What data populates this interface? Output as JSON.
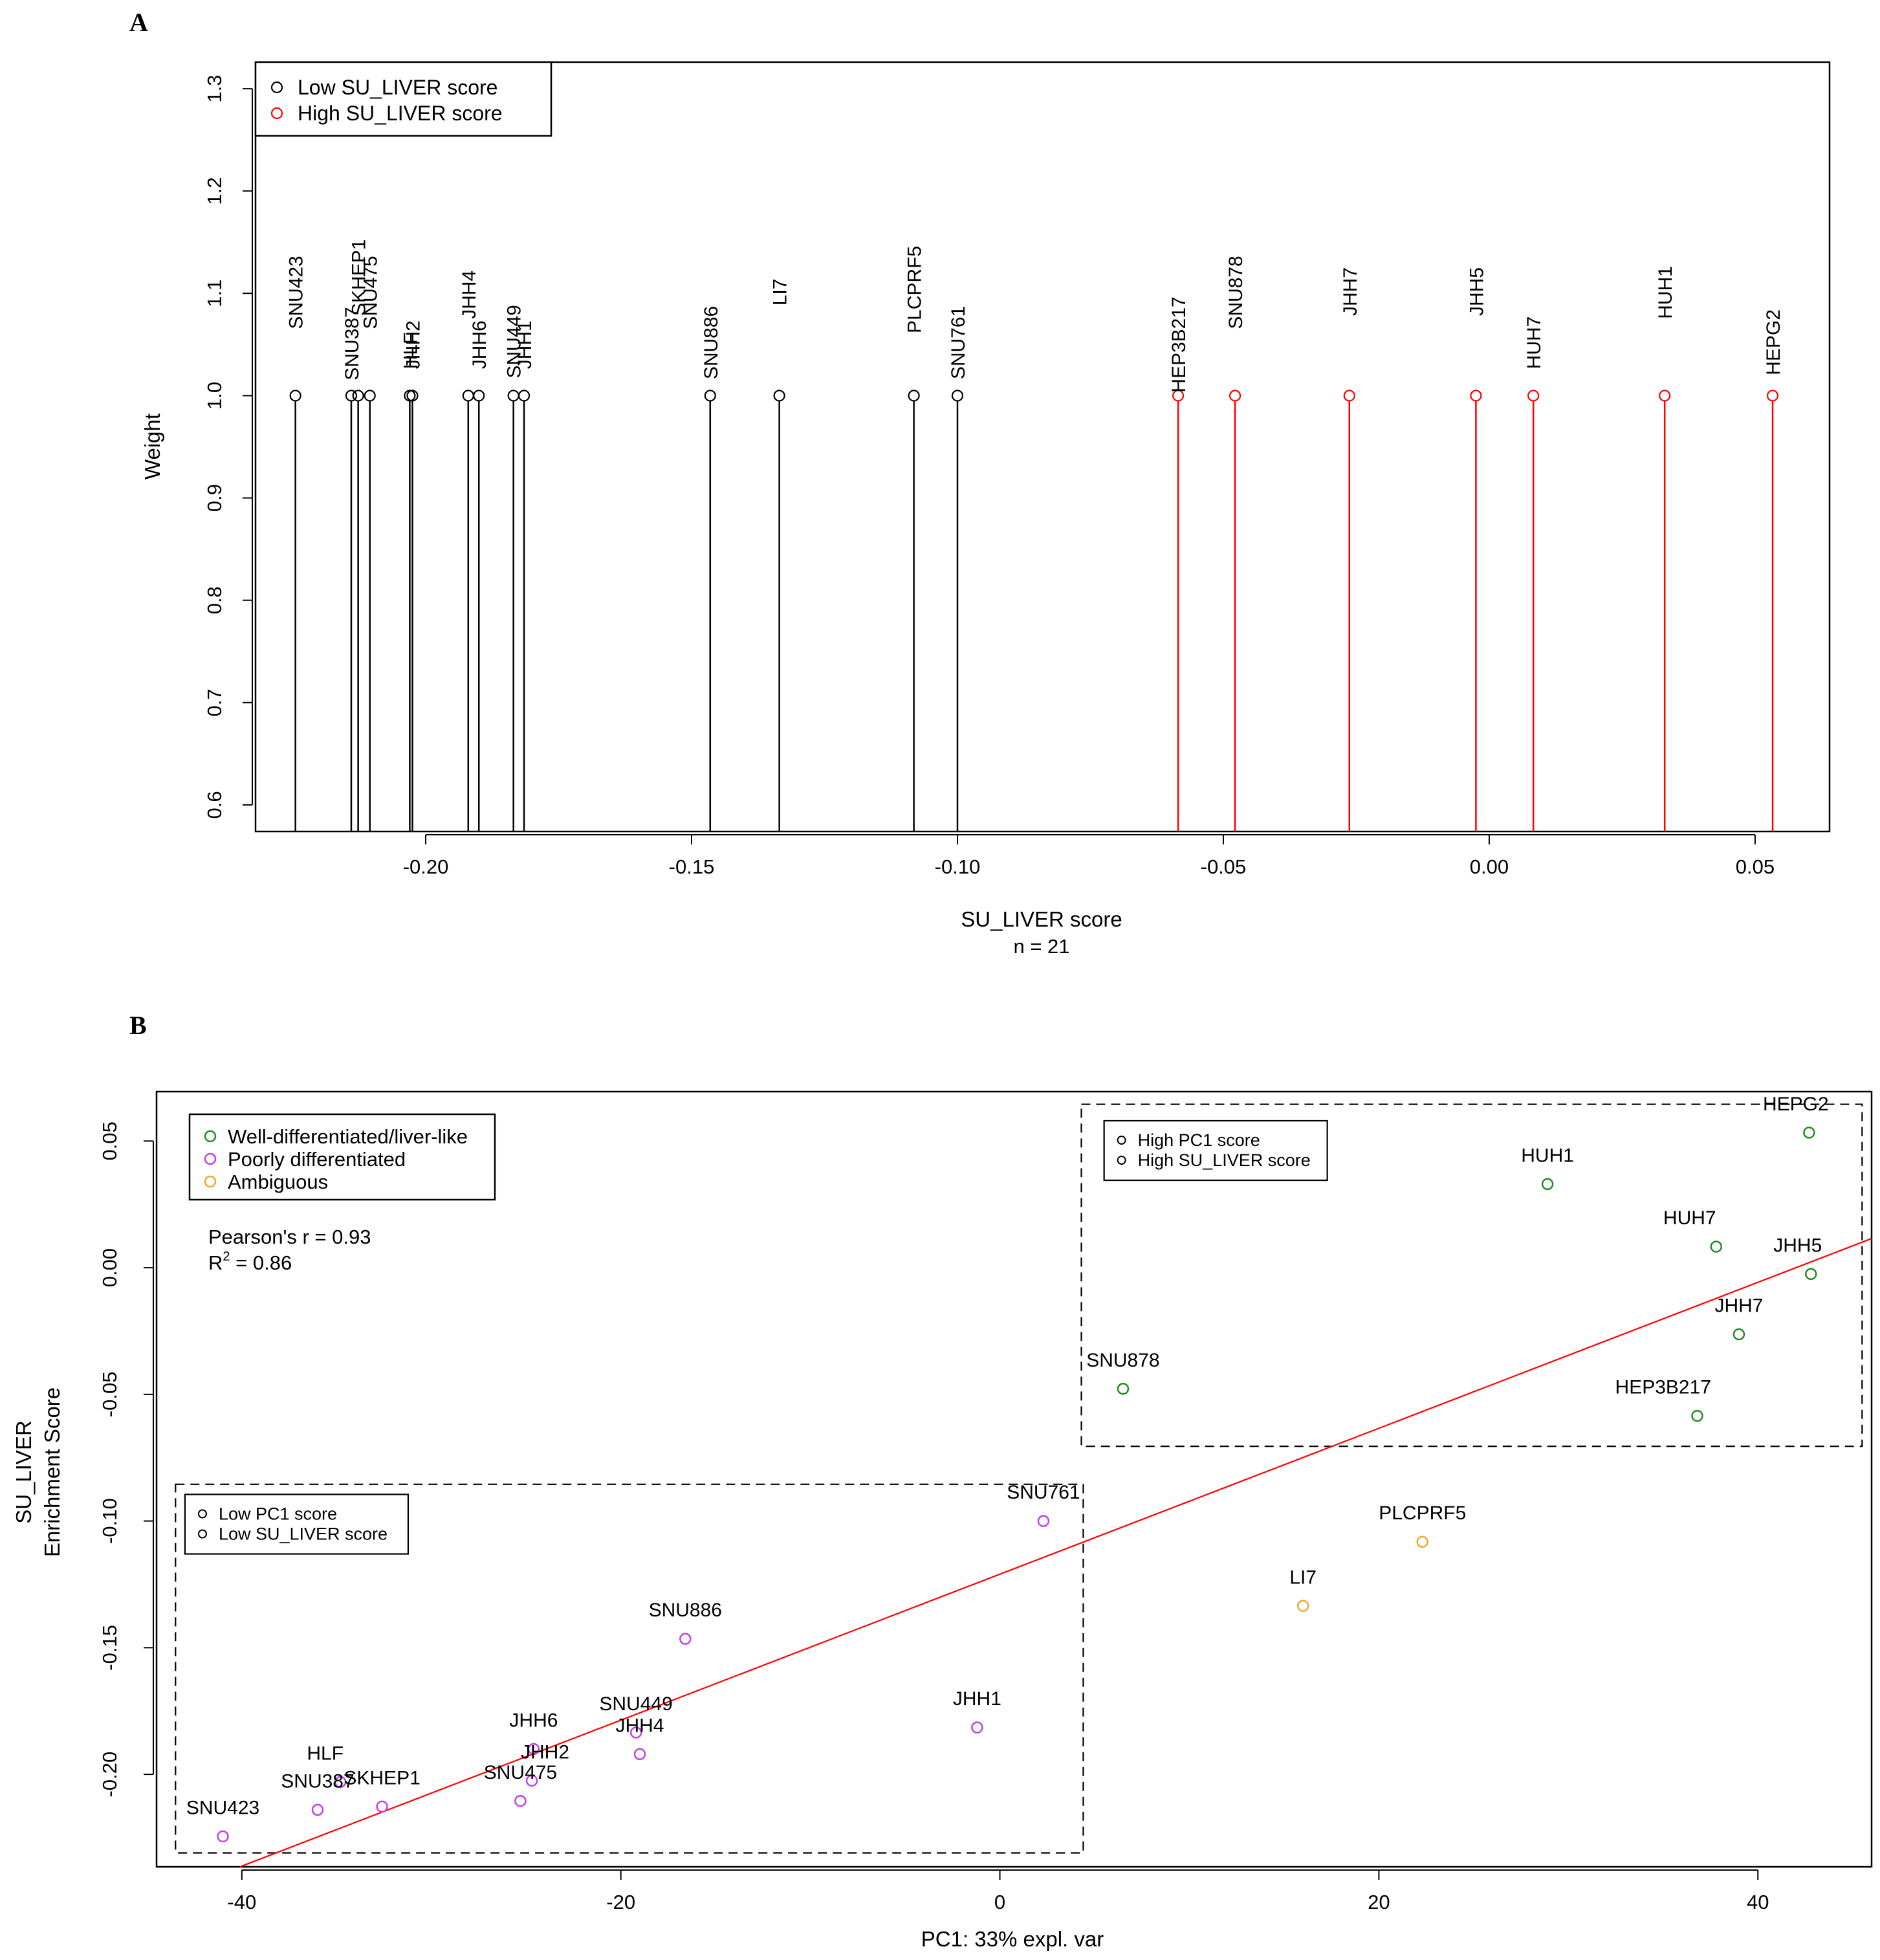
{
  "panel_a": {
    "label": "A",
    "chart_data": {
      "type": "lollipop",
      "xlabel": "SU_LIVER score",
      "xlabel_sub": "n = 21",
      "ylabel": "Weight",
      "xlim": [
        -0.232,
        0.064
      ],
      "ylim": [
        0.574,
        1.326
      ],
      "xticks": [
        -0.2,
        -0.15,
        -0.1,
        -0.05,
        0.0,
        0.05
      ],
      "xtick_labels": [
        "-0.20",
        "-0.15",
        "-0.10",
        "-0.05",
        "0.00",
        "0.05"
      ],
      "yticks": [
        0.6,
        0.7,
        0.8,
        0.9,
        1.0,
        1.1,
        1.2,
        1.3
      ],
      "ytick_labels": [
        "0.6",
        "0.7",
        "0.8",
        "0.9",
        "1.0",
        "1.1",
        "1.2",
        "1.3"
      ],
      "legend": {
        "position": "top-left",
        "entries": [
          {
            "label": "Low SU_LIVER score",
            "color": "#000000"
          },
          {
            "label": "High SU_LIVER score",
            "color": "#ff0000"
          }
        ]
      },
      "points": [
        {
          "name": "SNU423",
          "x": -0.2245,
          "weight": 1.0,
          "group": "low",
          "label_y": 1.065
        },
        {
          "name": "SNU387",
          "x": -0.214,
          "weight": 1.0,
          "group": "low",
          "label_y": 1.015
        },
        {
          "name": "SKHEP1",
          "x": -0.2127,
          "weight": 1.0,
          "group": "low",
          "label_y": 1.078
        },
        {
          "name": "SNU475",
          "x": -0.2105,
          "weight": 1.0,
          "group": "low",
          "label_y": 1.065
        },
        {
          "name": "HLF",
          "x": -0.203,
          "weight": 1.0,
          "group": "low",
          "label_y": 1.026
        },
        {
          "name": "JHH2",
          "x": -0.2025,
          "weight": 1.0,
          "group": "low",
          "label_y": 1.026
        },
        {
          "name": "JHH4",
          "x": -0.192,
          "weight": 1.0,
          "group": "low",
          "label_y": 1.075
        },
        {
          "name": "JHH6",
          "x": -0.19,
          "weight": 1.0,
          "group": "low",
          "label_y": 1.026
        },
        {
          "name": "SNU449",
          "x": -0.1835,
          "weight": 1.0,
          "group": "low",
          "label_y": 1.017
        },
        {
          "name": "JHH1",
          "x": -0.1815,
          "weight": 1.0,
          "group": "low",
          "label_y": 1.026
        },
        {
          "name": "SNU886",
          "x": -0.1465,
          "weight": 1.0,
          "group": "low",
          "label_y": 1.016
        },
        {
          "name": "LI7",
          "x": -0.1335,
          "weight": 1.0,
          "group": "low",
          "label_y": 1.088
        },
        {
          "name": "PLCPRF5",
          "x": -0.1082,
          "weight": 1.0,
          "group": "low",
          "label_y": 1.061
        },
        {
          "name": "SNU761",
          "x": -0.1,
          "weight": 1.0,
          "group": "low",
          "label_y": 1.016
        },
        {
          "name": "HEP3B217",
          "x": -0.0585,
          "weight": 1.0,
          "group": "high",
          "label_y": 1.003
        },
        {
          "name": "SNU878",
          "x": -0.0478,
          "weight": 1.0,
          "group": "high",
          "label_y": 1.065
        },
        {
          "name": "JHH7",
          "x": -0.0263,
          "weight": 1.0,
          "group": "high",
          "label_y": 1.078
        },
        {
          "name": "JHH5",
          "x": -0.0025,
          "weight": 1.0,
          "group": "high",
          "label_y": 1.078
        },
        {
          "name": "HUH7",
          "x": 0.0083,
          "weight": 1.0,
          "group": "high",
          "label_y": 1.026
        },
        {
          "name": "HUH1",
          "x": 0.033,
          "weight": 1.0,
          "group": "high",
          "label_y": 1.075
        },
        {
          "name": "HEPG2",
          "x": 0.0533,
          "weight": 1.0,
          "group": "high",
          "label_y": 1.02
        }
      ]
    }
  },
  "panel_b": {
    "label": "B",
    "chart_data": {
      "type": "scatter",
      "xlabel": "PC1: 33% expl. var",
      "ylabel_line1": "SU_LIVER",
      "ylabel_line2": "Enrichment Score",
      "xlim": [
        -44.5,
        46.0
      ],
      "ylim": [
        -0.2365,
        0.0695
      ],
      "xticks": [
        -40,
        -20,
        0,
        20,
        40
      ],
      "xtick_labels": [
        "-40",
        "-20",
        "0",
        "20",
        "40"
      ],
      "yticks": [
        0.05,
        0.0,
        -0.05,
        -0.1,
        -0.15,
        -0.2
      ],
      "ytick_labels": [
        "0.05",
        "0.00",
        "-0.05",
        "-0.10",
        "-0.15",
        "-0.20"
      ],
      "legend": {
        "position": "top-left",
        "entries": [
          {
            "label": "Well-differentiated/liver-like",
            "color": "#228b22"
          },
          {
            "label": "Poorly differentiated",
            "color": "#c040f0"
          },
          {
            "label": "Ambiguous",
            "color": "#f0a830"
          }
        ]
      },
      "stats": {
        "pearson": "Pearson's r = 0.93",
        "r2_prefix": "R",
        "r2_sup": "2",
        "r2_rest": " = 0.86"
      },
      "fit_line": {
        "color": "#ff0000",
        "x": [
          -40.1,
          46.0
        ],
        "y": [
          -0.2365,
          0.0115
        ]
      },
      "boxes": [
        {
          "name": "high-box",
          "x": [
            4.3,
            45.5
          ],
          "y": [
            -0.0705,
            0.0645
          ],
          "legend_entries": [
            "High PC1 score",
            "High SU_LIVER score"
          ],
          "legend_x": 5.5,
          "legend_y": 0.058
        },
        {
          "name": "low-box",
          "x": [
            -43.5,
            4.4
          ],
          "y": [
            -0.231,
            -0.0855
          ],
          "legend_entries": [
            "Low PC1 score",
            "Low SU_LIVER score"
          ],
          "legend_x": -43.0,
          "legend_y": -0.0895
        }
      ],
      "points": [
        {
          "name": "HEPG2",
          "x": 42.7,
          "y": 0.0533,
          "group": "well",
          "label_dx": -0.7,
          "label_dy": 0.0088
        },
        {
          "name": "HUH1",
          "x": 28.9,
          "y": 0.033,
          "group": "well",
          "label_dx": 0.0,
          "label_dy": 0.0088
        },
        {
          "name": "HUH7",
          "x": 37.8,
          "y": 0.0083,
          "group": "well",
          "label_dx": -1.4,
          "label_dy": 0.0088
        },
        {
          "name": "JHH5",
          "x": 42.8,
          "y": -0.0025,
          "group": "well",
          "label_dx": -0.7,
          "label_dy": 0.0088
        },
        {
          "name": "JHH7",
          "x": 39.0,
          "y": -0.0263,
          "group": "well",
          "label_dx": 0.0,
          "label_dy": 0.0088
        },
        {
          "name": "SNU878",
          "x": 6.5,
          "y": -0.0478,
          "group": "well",
          "label_dx": 0.0,
          "label_dy": 0.0088
        },
        {
          "name": "HEP3B217",
          "x": 36.8,
          "y": -0.0585,
          "group": "well",
          "label_dx": -1.8,
          "label_dy": 0.0088
        },
        {
          "name": "SNU761",
          "x": 2.3,
          "y": -0.1,
          "group": "poor",
          "label_dx": 0.0,
          "label_dy": 0.0088
        },
        {
          "name": "PLCPRF5",
          "x": 22.3,
          "y": -0.1082,
          "group": "ambiguous",
          "label_dx": 0.0,
          "label_dy": 0.0088
        },
        {
          "name": "LI7",
          "x": 16.0,
          "y": -0.1335,
          "group": "ambiguous",
          "label_dx": 0.0,
          "label_dy": 0.0088
        },
        {
          "name": "SNU886",
          "x": -16.6,
          "y": -0.1465,
          "group": "poor",
          "label_dx": 0.0,
          "label_dy": 0.0088
        },
        {
          "name": "JHH1",
          "x": -1.2,
          "y": -0.1815,
          "group": "poor",
          "label_dx": 0.0,
          "label_dy": 0.0088
        },
        {
          "name": "SNU449",
          "x": -19.2,
          "y": -0.1835,
          "group": "poor",
          "label_dx": 0.0,
          "label_dy": 0.0088
        },
        {
          "name": "JHH4",
          "x": -19.0,
          "y": -0.192,
          "group": "poor",
          "label_dx": 0.0,
          "label_dy": 0.0088
        },
        {
          "name": "JHH6",
          "x": -24.6,
          "y": -0.19,
          "group": "poor",
          "label_dx": 0.0,
          "label_dy": 0.0088
        },
        {
          "name": "JHH2",
          "x": -24.7,
          "y": -0.2025,
          "group": "poor",
          "label_dx": 0.7,
          "label_dy": 0.0088
        },
        {
          "name": "SNU475",
          "x": -25.3,
          "y": -0.2105,
          "group": "poor",
          "label_dx": 0.0,
          "label_dy": 0.0088
        },
        {
          "name": "HLF",
          "x": -34.8,
          "y": -0.203,
          "group": "poor",
          "label_dx": -0.8,
          "label_dy": 0.0088
        },
        {
          "name": "SKHEP1",
          "x": -32.6,
          "y": -0.2127,
          "group": "poor",
          "label_dx": 0.0,
          "label_dy": 0.0088
        },
        {
          "name": "SNU387",
          "x": -36.0,
          "y": -0.214,
          "group": "poor",
          "label_dx": 0.0,
          "label_dy": 0.0088
        },
        {
          "name": "SNU423",
          "x": -41.0,
          "y": -0.2245,
          "group": "poor",
          "label_dx": 0.0,
          "label_dy": 0.0088
        }
      ],
      "group_colors": {
        "well": "#228b22",
        "poor": "#c040f0",
        "ambiguous": "#f0a830"
      }
    }
  }
}
